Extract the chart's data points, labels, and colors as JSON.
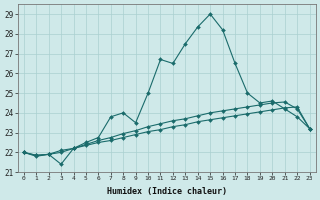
{
  "xlabel": "Humidex (Indice chaleur)",
  "background_color": "#cfe9e9",
  "grid_color": "#aad0d0",
  "line_color": "#1a6b6b",
  "xlim": [
    -0.5,
    23.5
  ],
  "ylim": [
    21.0,
    29.5
  ],
  "yticks": [
    21,
    22,
    23,
    24,
    25,
    26,
    27,
    28,
    29
  ],
  "xticks": [
    0,
    1,
    2,
    3,
    4,
    5,
    6,
    7,
    8,
    9,
    10,
    11,
    12,
    13,
    14,
    15,
    16,
    17,
    18,
    19,
    20,
    21,
    22,
    23
  ],
  "line1_x": [
    0,
    1,
    2,
    3,
    4,
    5,
    6,
    7,
    8,
    9,
    10,
    11,
    12,
    13,
    14,
    15,
    16,
    17,
    18,
    19,
    20,
    21,
    22,
    23
  ],
  "line1_y": [
    22.0,
    21.8,
    21.9,
    21.4,
    22.2,
    22.5,
    22.75,
    23.8,
    24.0,
    23.5,
    25.0,
    26.7,
    26.5,
    27.5,
    28.35,
    29.0,
    28.2,
    26.5,
    25.0,
    24.5,
    24.6,
    24.2,
    23.8,
    23.2
  ],
  "line2_x": [
    0,
    1,
    2,
    3,
    4,
    5,
    6,
    7,
    8,
    9,
    10,
    11,
    12,
    13,
    14,
    15,
    16,
    17,
    18,
    19,
    20,
    21,
    22,
    23
  ],
  "line2_y": [
    22.0,
    21.85,
    21.9,
    22.1,
    22.2,
    22.35,
    22.5,
    22.6,
    22.75,
    22.9,
    23.05,
    23.15,
    23.3,
    23.4,
    23.55,
    23.65,
    23.75,
    23.85,
    23.95,
    24.05,
    24.15,
    24.25,
    24.3,
    23.2
  ],
  "line3_x": [
    0,
    1,
    2,
    3,
    4,
    5,
    6,
    7,
    8,
    9,
    10,
    11,
    12,
    13,
    14,
    15,
    16,
    17,
    18,
    19,
    20,
    21,
    22,
    23
  ],
  "line3_y": [
    22.0,
    21.85,
    21.9,
    22.0,
    22.2,
    22.4,
    22.6,
    22.75,
    22.95,
    23.1,
    23.3,
    23.45,
    23.6,
    23.7,
    23.85,
    24.0,
    24.1,
    24.2,
    24.3,
    24.4,
    24.5,
    24.55,
    24.2,
    23.2
  ]
}
